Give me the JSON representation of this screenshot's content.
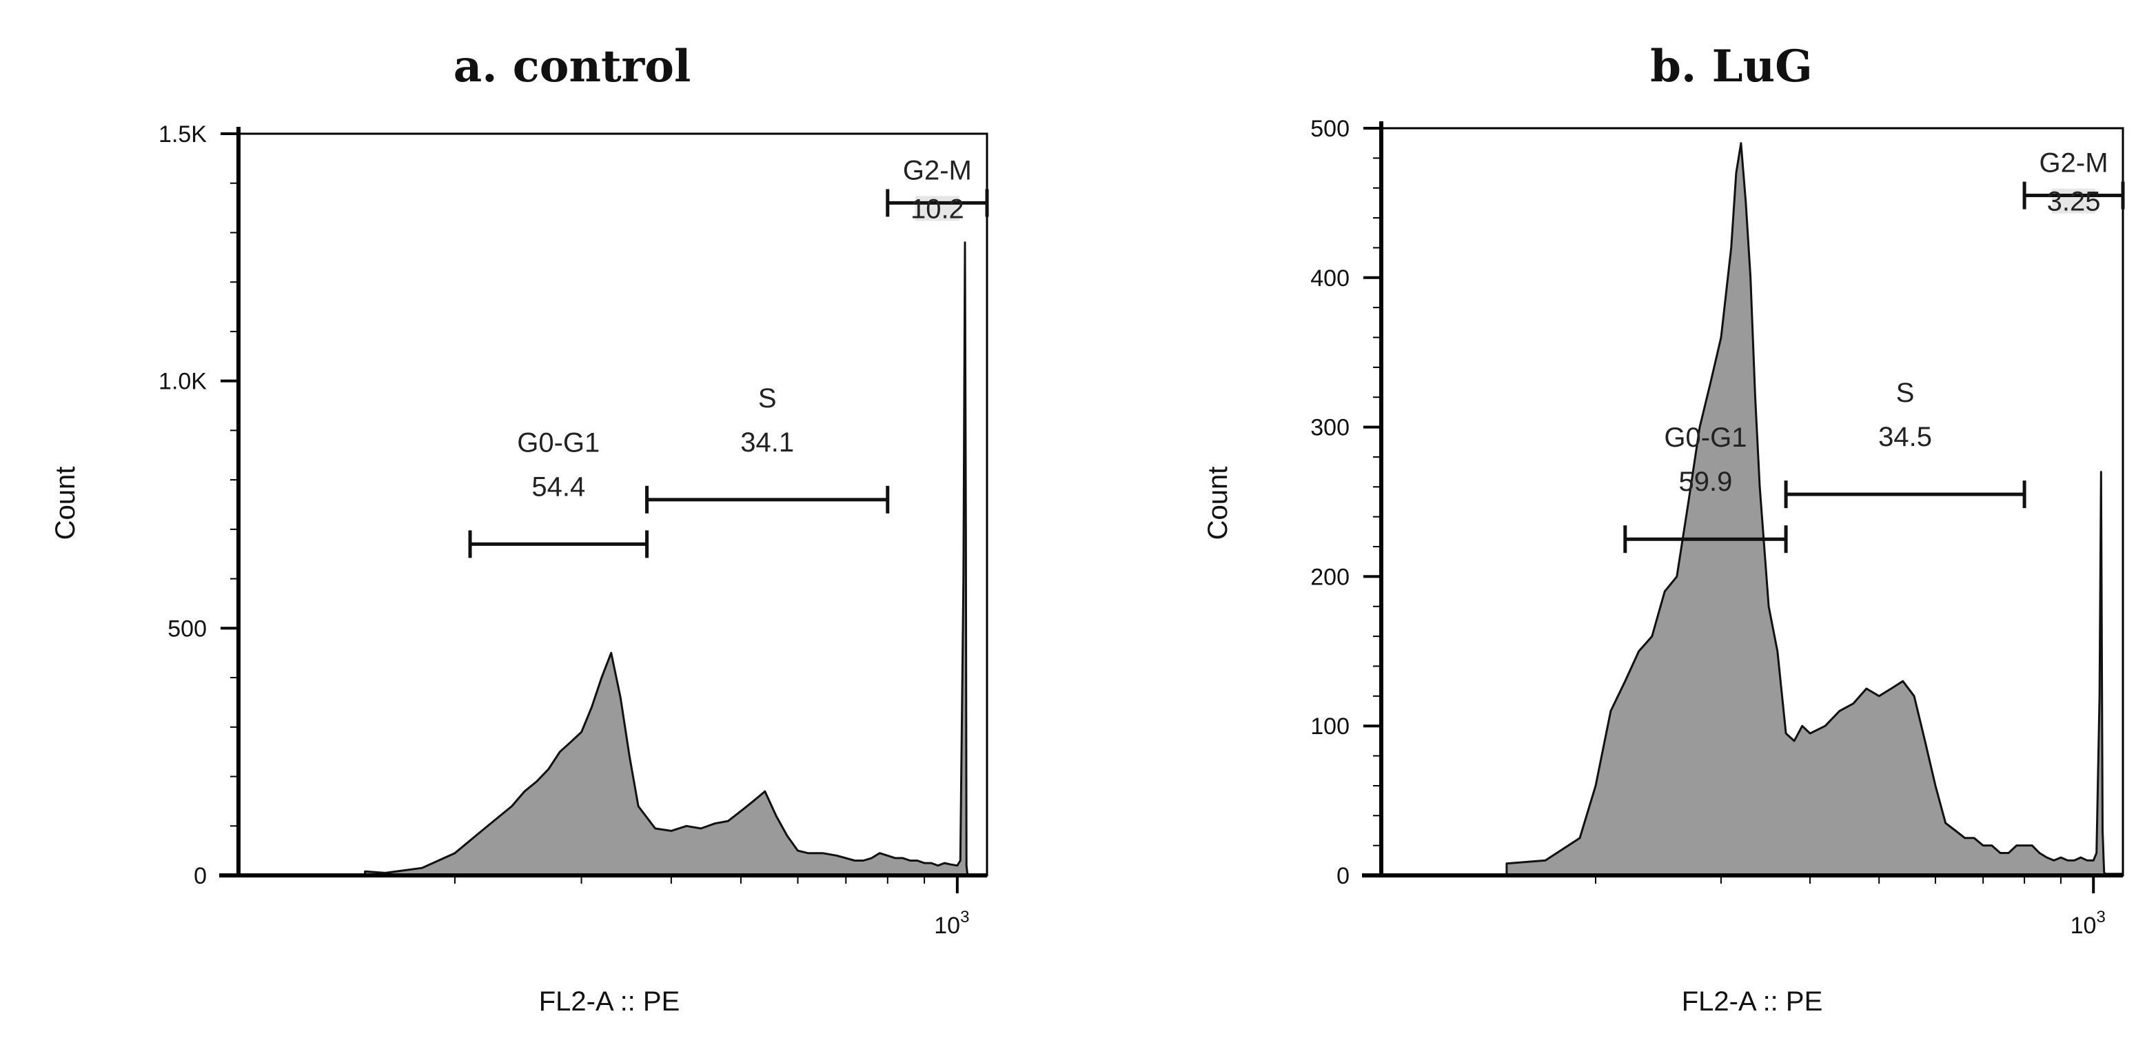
{
  "chart_data": [
    {
      "type": "area",
      "title": "a. control",
      "xlabel": "FL2-A :: PE",
      "ylabel": "Count",
      "ylim": [
        0,
        1500
      ],
      "yticks": [
        {
          "value": 0,
          "label": "0"
        },
        {
          "value": 500,
          "label": "500"
        },
        {
          "value": 1000,
          "label": "1.0K"
        },
        {
          "value": 1500,
          "label": "1.5K"
        }
      ],
      "xticks": [
        {
          "value": 1000,
          "label": "10",
          "sup": "3"
        }
      ],
      "x": [
        150,
        160,
        180,
        200,
        220,
        240,
        250,
        260,
        270,
        280,
        290,
        300,
        310,
        320,
        330,
        340,
        350,
        360,
        380,
        400,
        420,
        440,
        460,
        480,
        500,
        520,
        540,
        560,
        580,
        600,
        620,
        650,
        680,
        700,
        720,
        740,
        760,
        780,
        800,
        820,
        840,
        860,
        880,
        900,
        920,
        940,
        960,
        980,
        1000,
        1010,
        1020,
        1025,
        1028,
        1030,
        1033,
        1036,
        1040,
        1060,
        1100
      ],
      "values": [
        8,
        5,
        15,
        45,
        95,
        140,
        170,
        190,
        215,
        250,
        270,
        290,
        340,
        400,
        450,
        360,
        240,
        140,
        95,
        90,
        100,
        95,
        105,
        110,
        130,
        150,
        170,
        120,
        80,
        50,
        45,
        45,
        40,
        35,
        30,
        30,
        35,
        45,
        40,
        35,
        35,
        30,
        30,
        25,
        25,
        20,
        25,
        22,
        20,
        30,
        600,
        1280,
        700,
        20,
        3,
        2,
        2,
        1,
        1
      ],
      "gates": [
        {
          "name": "G0-G1",
          "value": "54.4",
          "x_start": 210,
          "x_end": 370,
          "y": 670
        },
        {
          "name": "S",
          "value": "34.1",
          "x_start": 370,
          "x_end": 800,
          "y": 760
        },
        {
          "name": "G2-M",
          "value": "10.2",
          "x_start": 800,
          "x_end": 1100,
          "y": 1360
        }
      ]
    },
    {
      "type": "area",
      "title": "b. LuG",
      "xlabel": "FL2-A :: PE",
      "ylabel": "Count",
      "ylim": [
        0,
        500
      ],
      "yticks": [
        {
          "value": 0,
          "label": "0"
        },
        {
          "value": 100,
          "label": "100"
        },
        {
          "value": 200,
          "label": "200"
        },
        {
          "value": 300,
          "label": "300"
        },
        {
          "value": 400,
          "label": "400"
        },
        {
          "value": 500,
          "label": "500"
        }
      ],
      "xticks": [
        {
          "value": 1000,
          "label": "10",
          "sup": "3"
        }
      ],
      "x": [
        150,
        170,
        190,
        200,
        210,
        220,
        230,
        240,
        250,
        260,
        270,
        280,
        290,
        300,
        310,
        315,
        320,
        325,
        330,
        335,
        340,
        350,
        360,
        370,
        380,
        390,
        400,
        420,
        440,
        460,
        480,
        500,
        520,
        540,
        560,
        580,
        600,
        620,
        640,
        660,
        680,
        700,
        720,
        740,
        760,
        780,
        800,
        820,
        840,
        860,
        880,
        900,
        920,
        940,
        960,
        980,
        1000,
        1010,
        1020,
        1025,
        1030,
        1035,
        1040,
        1060,
        1100
      ],
      "values": [
        8,
        10,
        25,
        60,
        110,
        130,
        150,
        160,
        190,
        200,
        250,
        300,
        330,
        360,
        420,
        470,
        490,
        450,
        400,
        320,
        260,
        180,
        150,
        95,
        90,
        100,
        95,
        100,
        110,
        115,
        125,
        120,
        125,
        130,
        120,
        90,
        60,
        35,
        30,
        25,
        25,
        20,
        20,
        15,
        15,
        20,
        20,
        20,
        15,
        12,
        10,
        12,
        10,
        10,
        12,
        10,
        10,
        15,
        120,
        270,
        30,
        2,
        1,
        1,
        1
      ],
      "gates": [
        {
          "name": "G0-G1",
          "value": "59.9",
          "x_start": 220,
          "x_end": 370,
          "y": 225
        },
        {
          "name": "S",
          "value": "34.5",
          "x_start": 370,
          "x_end": 800,
          "y": 255
        },
        {
          "name": "G2-M",
          "value": "3.25",
          "x_start": 800,
          "x_end": 1100,
          "y": 455
        }
      ]
    }
  ]
}
